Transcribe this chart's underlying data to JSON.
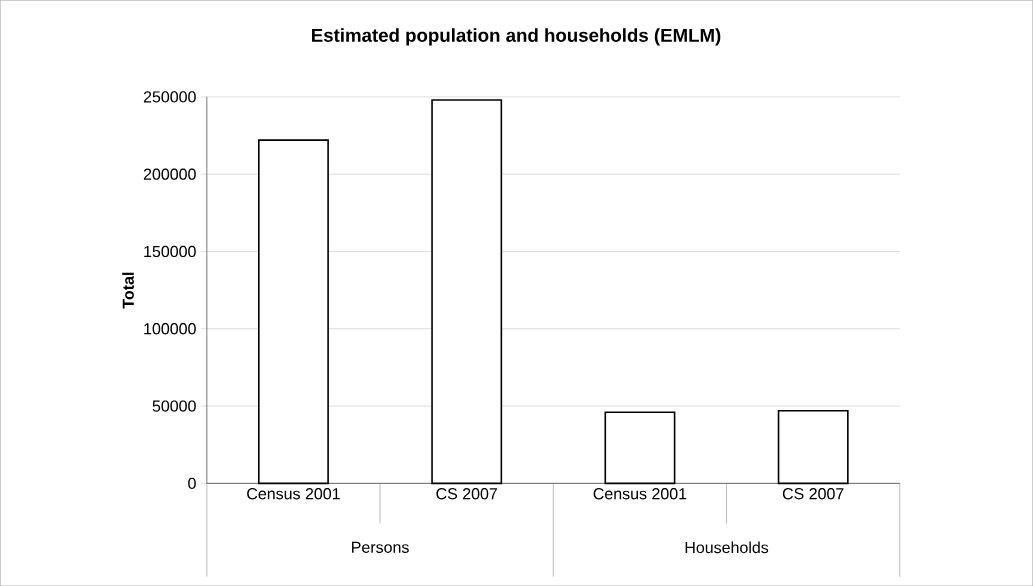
{
  "chart_data": {
    "type": "bar",
    "title": "Estimated population and households (EMLM)",
    "ylabel": "Total",
    "categories": [
      "Census 2001",
      "CS 2007",
      "Census 2001",
      "CS 2007"
    ],
    "values": [
      222000,
      248000,
      46000,
      47000
    ],
    "color": "#ffffff",
    "ylim": [
      0,
      250000
    ],
    "yticks": [
      0,
      50000,
      100000,
      150000,
      200000,
      250000
    ],
    "grid": "y",
    "annotations": [
      "Persons",
      "Households"
    ]
  }
}
